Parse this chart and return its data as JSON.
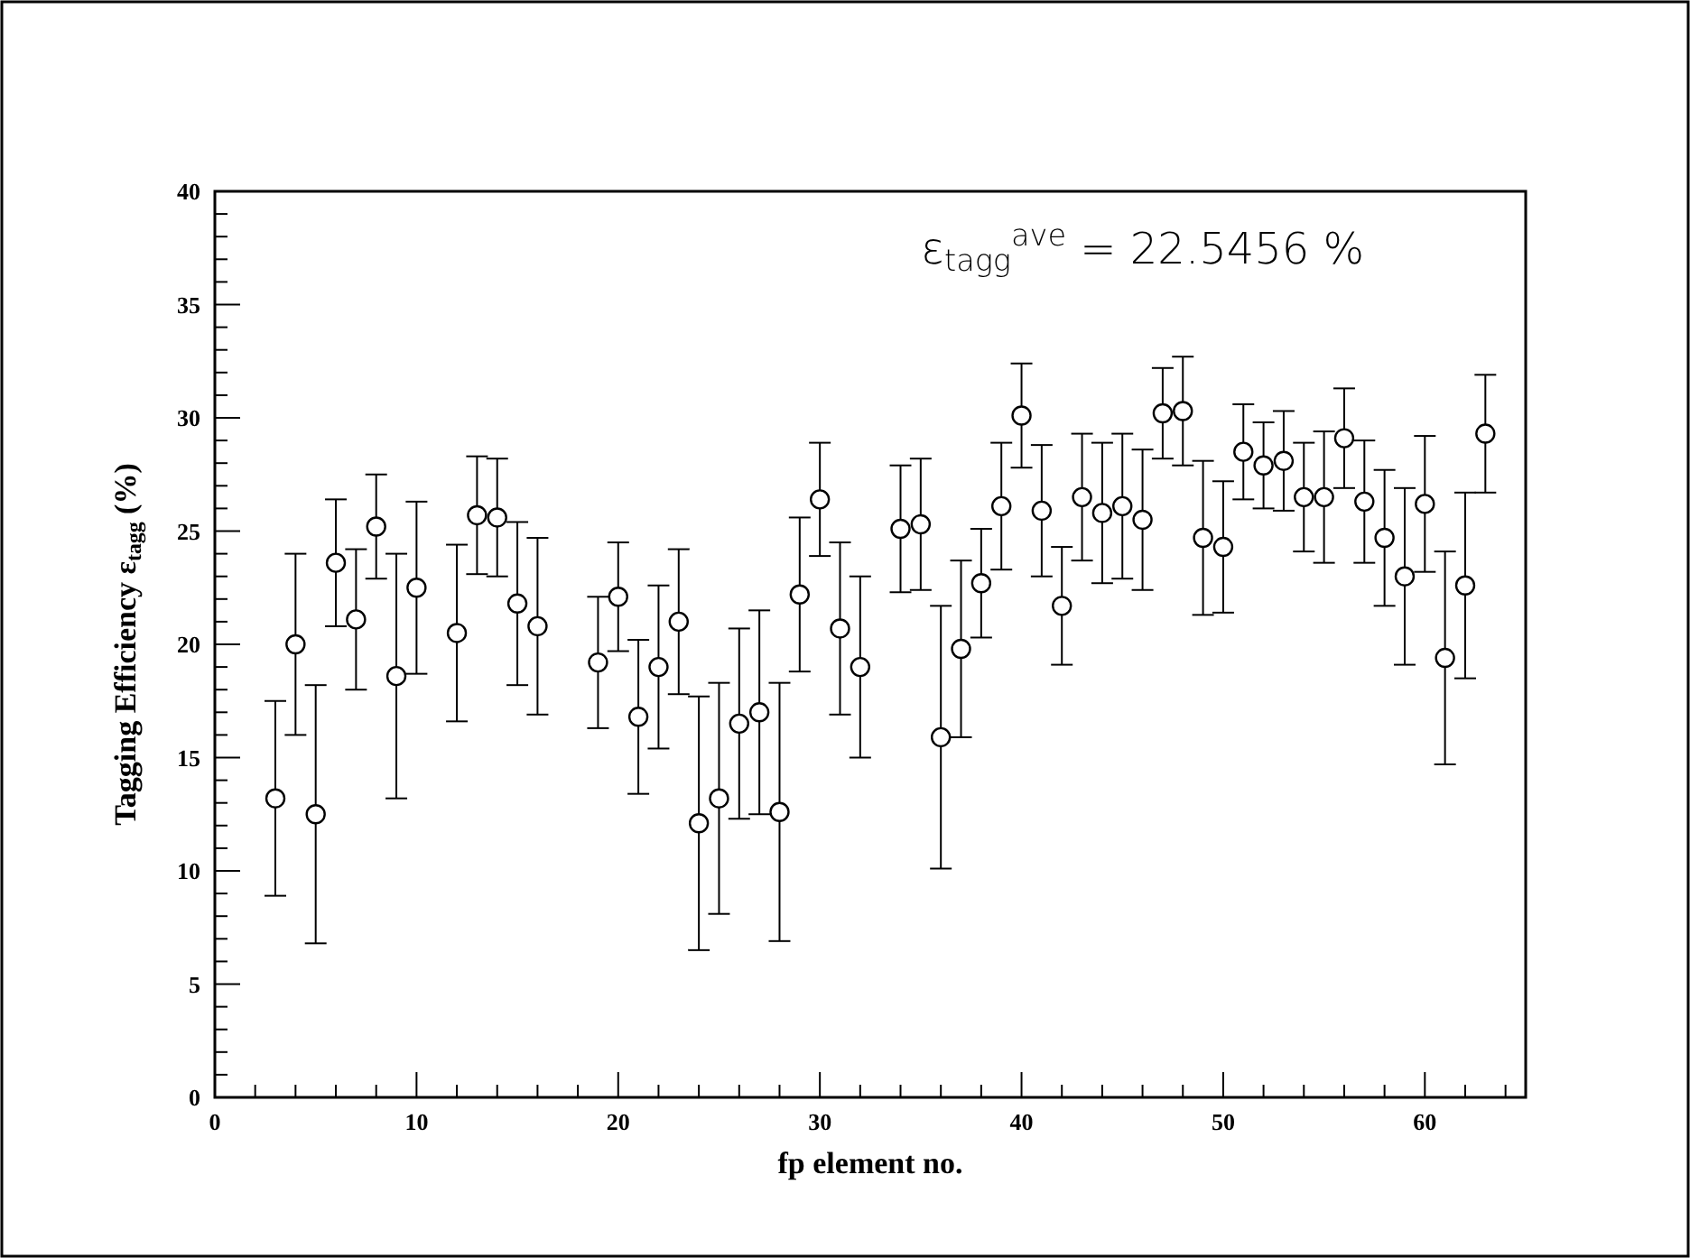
{
  "chart_data": {
    "type": "scatter",
    "xlabel": "fp element no.",
    "ylabel": "Tagging Efficiency ε$_{tagg}$ (%)",
    "annotations": [
      "ε$_{tagg}$$^{ave}$ = 22.5456  %"
    ],
    "x": [
      3,
      4,
      5,
      6,
      7,
      8,
      9,
      10,
      12,
      13,
      14,
      15,
      16,
      19,
      20,
      21,
      22,
      23,
      24,
      25,
      26,
      27,
      28,
      29,
      30,
      31,
      32,
      34,
      35,
      36,
      37,
      38,
      39,
      40,
      41,
      42,
      43,
      44,
      45,
      46,
      47,
      48,
      49,
      50,
      51,
      52,
      53,
      54,
      55,
      56,
      57,
      58,
      59,
      60,
      61,
      62,
      63
    ],
    "values": [
      13.2,
      20.0,
      12.5,
      23.6,
      21.1,
      25.2,
      18.6,
      22.5,
      20.5,
      25.7,
      25.6,
      21.8,
      20.8,
      19.2,
      22.1,
      16.8,
      19.0,
      21.0,
      12.1,
      13.2,
      16.5,
      17.0,
      12.6,
      22.2,
      26.4,
      20.7,
      19.0,
      25.1,
      25.3,
      15.9,
      19.8,
      22.7,
      26.1,
      30.1,
      25.9,
      21.7,
      26.5,
      25.8,
      26.1,
      25.5,
      30.2,
      30.3,
      24.7,
      24.3,
      28.5,
      27.9,
      28.1,
      26.5,
      26.5,
      29.1,
      26.3,
      24.7,
      23.0,
      26.2,
      19.4,
      22.6,
      29.3
    ],
    "errors": [
      4.3,
      4.0,
      5.7,
      2.8,
      3.1,
      2.3,
      5.4,
      3.8,
      3.9,
      2.6,
      2.6,
      3.6,
      3.9,
      2.9,
      2.4,
      3.4,
      3.6,
      3.2,
      5.6,
      5.1,
      4.2,
      4.5,
      5.7,
      3.4,
      2.5,
      3.8,
      4.0,
      2.8,
      2.9,
      5.8,
      3.9,
      2.4,
      2.8,
      2.3,
      2.9,
      2.6,
      2.8,
      3.1,
      3.2,
      3.1,
      2.0,
      2.4,
      3.4,
      2.9,
      2.1,
      1.9,
      2.2,
      2.4,
      2.9,
      2.2,
      2.7,
      3.0,
      3.9,
      3.0,
      4.7,
      4.1,
      2.6
    ],
    "color": "#000000",
    "marker": "circle",
    "grid": false,
    "xlim": [
      0,
      65
    ],
    "xticks": [
      0,
      {
        "value": 2,
        "label": null
      },
      {
        "value": 4,
        "label": null
      },
      {
        "value": 6,
        "label": null
      },
      {
        "value": 8,
        "label": null
      },
      10,
      {
        "value": 12,
        "label": null
      },
      {
        "value": 14,
        "label": null
      },
      {
        "value": 16,
        "label": null
      },
      {
        "value": 18,
        "label": null
      },
      20,
      {
        "value": 22,
        "label": null
      },
      {
        "value": 24,
        "label": null
      },
      {
        "value": 26,
        "label": null
      },
      {
        "value": 28,
        "label": null
      },
      30,
      {
        "value": 32,
        "label": null
      },
      {
        "value": 34,
        "label": null
      },
      {
        "value": 36,
        "label": null
      },
      {
        "value": 38,
        "label": null
      },
      40,
      {
        "value": 42,
        "label": null
      },
      {
        "value": 44,
        "label": null
      },
      {
        "value": 46,
        "label": null
      },
      {
        "value": 48,
        "label": null
      },
      50,
      {
        "value": 52,
        "label": null
      },
      {
        "value": 54,
        "label": null
      },
      {
        "value": 56,
        "label": null
      },
      {
        "value": 58,
        "label": null
      },
      60,
      {
        "value": 62,
        "label": null
      },
      {
        "value": 64,
        "label": null
      }
    ],
    "ylim": [
      0,
      40
    ],
    "yticks": [
      0,
      {
        "value": 1,
        "label": null
      },
      {
        "value": 2,
        "label": null
      },
      {
        "value": 3,
        "label": null
      },
      {
        "value": 4,
        "label": null
      },
      5,
      {
        "value": 6,
        "label": null
      },
      {
        "value": 7,
        "label": null
      },
      {
        "value": 8,
        "label": null
      },
      {
        "value": 9,
        "label": null
      },
      10,
      {
        "value": 11,
        "label": null
      },
      {
        "value": 12,
        "label": null
      },
      {
        "value": 13,
        "label": null
      },
      {
        "value": 14,
        "label": null
      },
      15,
      {
        "value": 16,
        "label": null
      },
      {
        "value": 17,
        "label": null
      },
      {
        "value": 18,
        "label": null
      },
      {
        "value": 19,
        "label": null
      },
      20,
      {
        "value": 21,
        "label": null
      },
      {
        "value": 22,
        "label": null
      },
      {
        "value": 23,
        "label": null
      },
      {
        "value": 24,
        "label": null
      },
      25,
      {
        "value": 26,
        "label": null
      },
      {
        "value": 27,
        "label": null
      },
      {
        "value": 28,
        "label": null
      },
      {
        "value": 29,
        "label": null
      },
      30,
      {
        "value": 31,
        "label": null
      },
      {
        "value": 32,
        "label": null
      },
      {
        "value": 33,
        "label": null
      },
      {
        "value": 34,
        "label": null
      },
      35,
      {
        "value": 36,
        "label": null
      },
      {
        "value": 37,
        "label": null
      },
      {
        "value": 38,
        "label": null
      },
      {
        "value": 39,
        "label": null
      },
      40
    ]
  }
}
